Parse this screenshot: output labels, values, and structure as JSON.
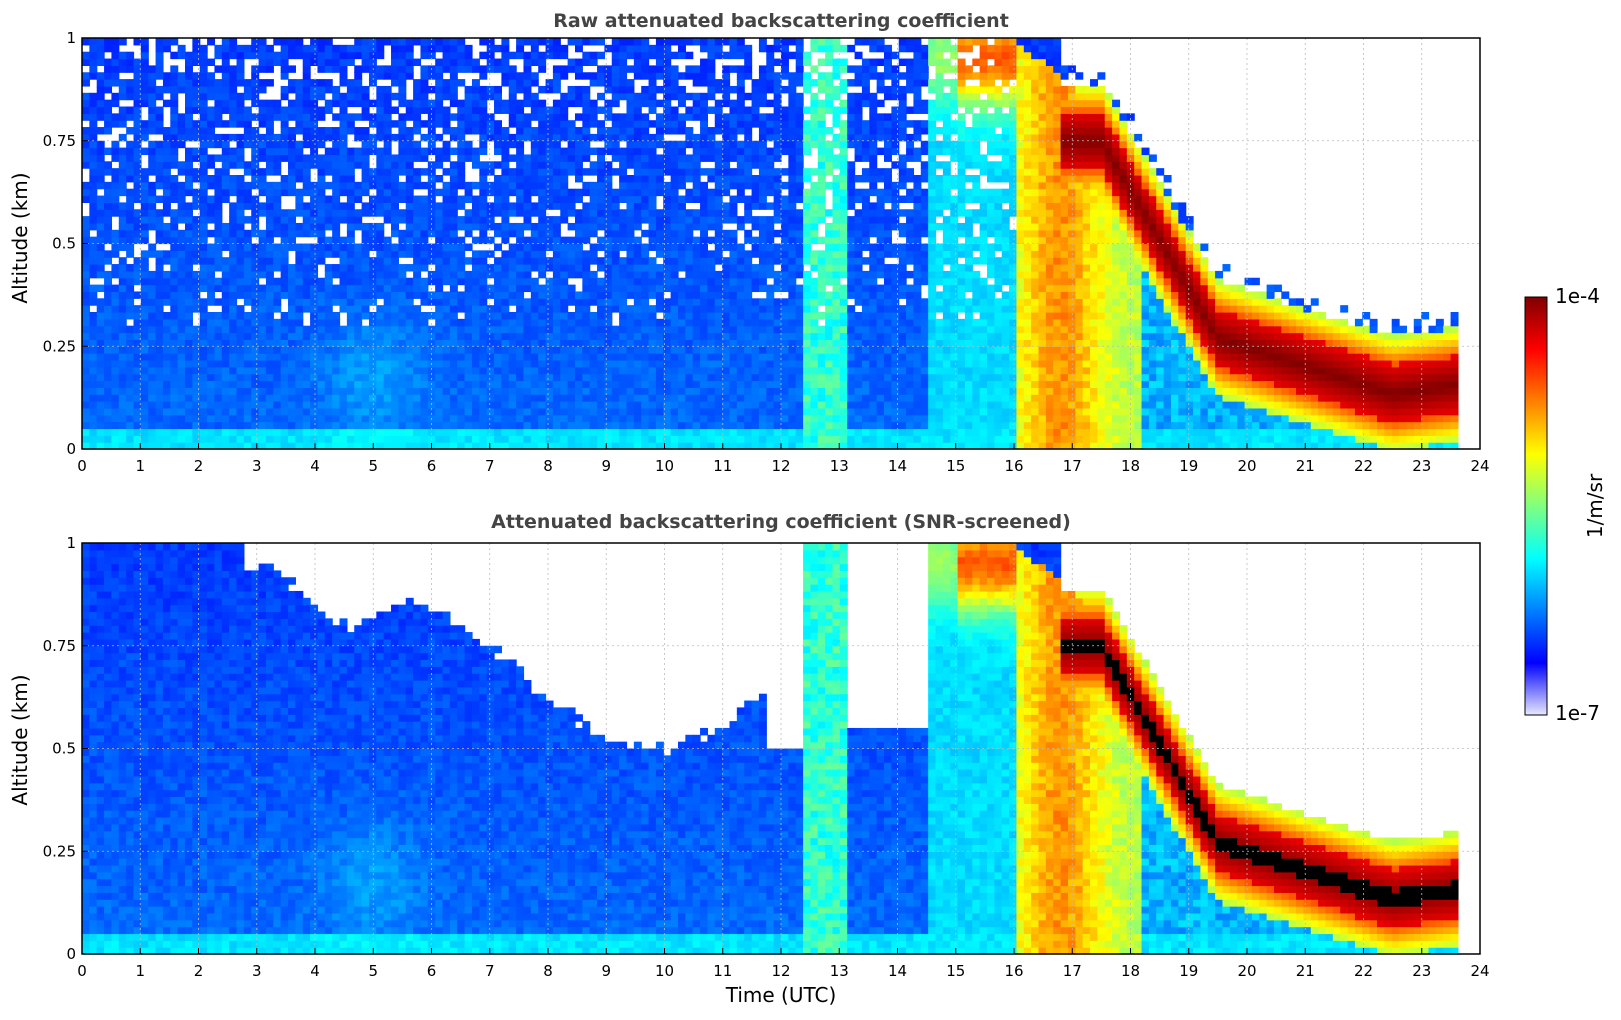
{
  "figure": {
    "colormap": "jet",
    "colormap_stops": [
      "#e8e8ff",
      "#0000ff",
      "#0080ff",
      "#00ffff",
      "#80ff80",
      "#ffff00",
      "#ff8000",
      "#ff0000",
      "#800000"
    ],
    "screened_saturation_color": "#000000",
    "grid": true
  },
  "chart_data": [
    {
      "type": "heatmap",
      "title": "Raw attenuated backscattering coefficient",
      "xlabel": "",
      "ylabel": "Altitude (km)",
      "xlim": [
        0,
        24
      ],
      "ylim": [
        0,
        1
      ],
      "x_ticks": [
        0,
        1,
        2,
        3,
        4,
        5,
        6,
        7,
        8,
        9,
        10,
        11,
        12,
        13,
        14,
        15,
        16,
        17,
        18,
        19,
        20,
        21,
        22,
        23,
        24
      ],
      "x_tick_labels": [
        "0",
        "1",
        "2",
        "3",
        "4",
        "5",
        "6",
        "7",
        "8",
        "9",
        "10",
        "11",
        "12",
        "13",
        "14",
        "15",
        "16",
        "17",
        "18",
        "19",
        "20",
        "21",
        "22",
        "23",
        "24"
      ],
      "y_ticks": [
        0,
        0.25,
        0.5,
        0.75,
        1
      ],
      "y_tick_labels": [
        "0",
        "0.25",
        "0.5",
        "0.75",
        "1"
      ],
      "z_unit": "1/m/sr",
      "z_range": [
        1e-07,
        0.0001
      ],
      "data_end_time": 23.65,
      "screened": false,
      "field_summary": [
        {
          "time_range": [
            0,
            16
          ],
          "feature": "background",
          "level": "low (blue)"
        },
        {
          "time_range": [
            12.4,
            13.1
          ],
          "feature": "cloud streak",
          "level": "moderate (cyan-green)"
        },
        {
          "time_range": [
            14.5,
            16.1
          ],
          "feature": "upper layer",
          "level": "high (red) near top"
        },
        {
          "time_range": [
            16.0,
            18.0
          ],
          "feature": "boundary layer",
          "level": "high (orange-yellow)"
        },
        {
          "time_range": [
            17.5,
            23.65
          ],
          "feature": "descending dense layer",
          "altitude_km": [
            0.65,
            0.1
          ],
          "level": "saturated (dark red)"
        }
      ]
    },
    {
      "type": "heatmap",
      "title": "Attenuated backscattering coefficient (SNR-screened)",
      "xlabel": "Time (UTC)",
      "ylabel": "Altitude (km)",
      "xlim": [
        0,
        24
      ],
      "ylim": [
        0,
        1
      ],
      "x_ticks": [
        0,
        1,
        2,
        3,
        4,
        5,
        6,
        7,
        8,
        9,
        10,
        11,
        12,
        13,
        14,
        15,
        16,
        17,
        18,
        19,
        20,
        21,
        22,
        23,
        24
      ],
      "x_tick_labels": [
        "0",
        "1",
        "2",
        "3",
        "4",
        "5",
        "6",
        "7",
        "8",
        "9",
        "10",
        "11",
        "12",
        "13",
        "14",
        "15",
        "16",
        "17",
        "18",
        "19",
        "20",
        "21",
        "22",
        "23",
        "24"
      ],
      "y_ticks": [
        0,
        0.25,
        0.5,
        0.75,
        1
      ],
      "y_tick_labels": [
        "0",
        "0.25",
        "0.5",
        "0.75",
        "1"
      ],
      "z_unit": "1/m/sr",
      "z_range": [
        1e-07,
        0.0001
      ],
      "data_end_time": 23.65,
      "screened": true,
      "field_summary": [
        {
          "time_range": [
            0,
            16
          ],
          "feature": "background",
          "level": "low (blue)"
        },
        {
          "time_range": [
            3,
            11.5
          ],
          "feature": "screened-out region above",
          "altitude_km": [
            0.95,
            0.5
          ]
        },
        {
          "time_range": [
            17.5,
            23.65
          ],
          "feature": "descending dense layer",
          "altitude_km": [
            0.65,
            0.1
          ],
          "level": "saturated (black)"
        }
      ]
    }
  ],
  "colorbar": {
    "label": "1/m/sr",
    "max_label": "1e-4",
    "min_label": "1e-7"
  }
}
